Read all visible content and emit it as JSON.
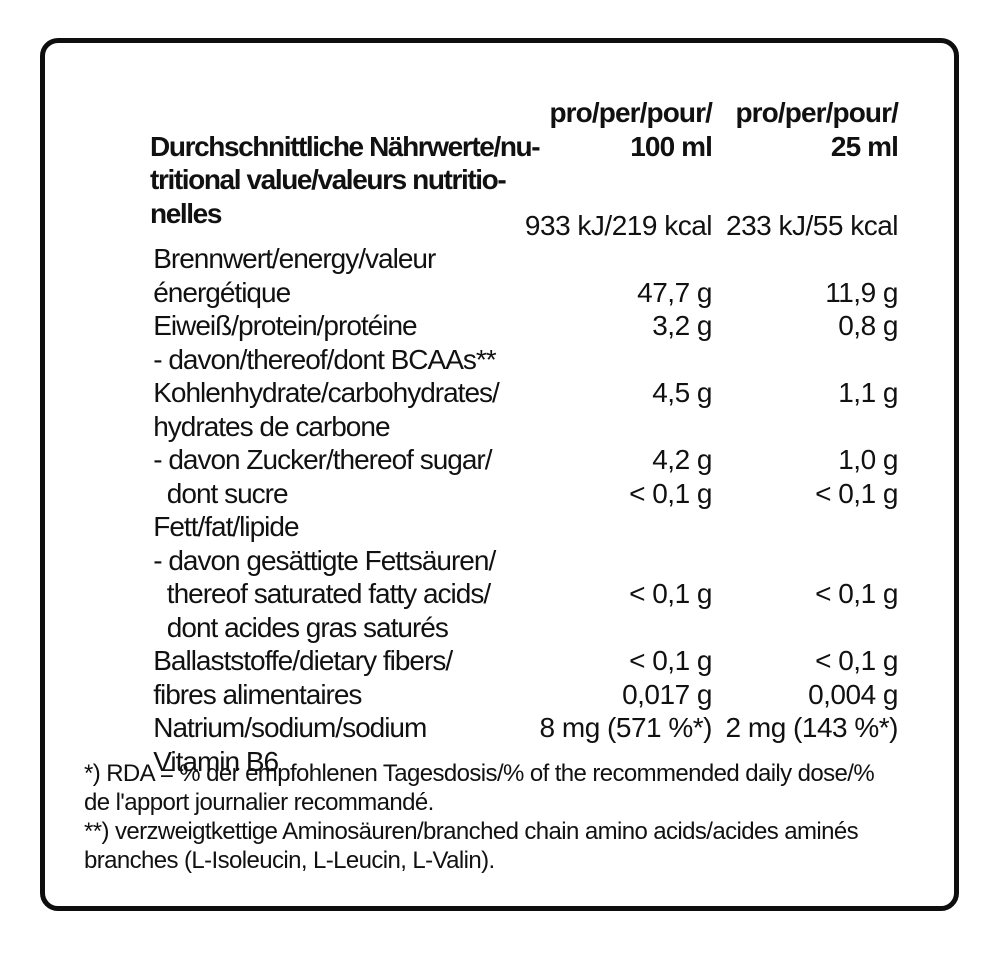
{
  "table": {
    "header_lines": [
      {
        "label": "Durchschnittliche Nährwerte/nu-",
        "c1": "pro/per/pour/",
        "c2": "pro/per/pour/"
      },
      {
        "label": "tritional value/valeurs nutritio-",
        "c1": "100 ml",
        "c2": "25 ml"
      },
      {
        "label": "nelles"
      }
    ],
    "rows": [
      {
        "label": "Brennwert/energy/valeur",
        "c1": "933 kJ/219 kcal",
        "c2": "233 kJ/55 kcal"
      },
      {
        "label": "énergétique"
      },
      {
        "label": "Eiweiß/protein/protéine",
        "c1": "47,7 g",
        "c2": "11,9 g"
      },
      {
        "label": "- davon/thereof/dont BCAAs**",
        "c1": "3,2 g",
        "c2": "0,8 g"
      },
      {
        "label": "Kohlenhydrate/carbohydrates/"
      },
      {
        "label": "hydrates de carbone",
        "c1": "4,5 g",
        "c2": "1,1 g"
      },
      {
        "label": "- davon Zucker/thereof sugar/"
      },
      {
        "label": "  dont sucre",
        "c1": "4,2 g",
        "c2": "1,0 g"
      },
      {
        "label": "Fett/fat/lipide",
        "c1": "< 0,1 g",
        "c2": "< 0,1 g"
      },
      {
        "label": "- davon gesättigte Fettsäuren/"
      },
      {
        "label": "  thereof saturated fatty acids/"
      },
      {
        "label": "  dont acides gras saturés",
        "c1": "< 0,1 g",
        "c2": "< 0,1 g"
      },
      {
        "label": "Ballaststoffe/dietary fibers/"
      },
      {
        "label": "fibres alimentaires",
        "c1": "< 0,1 g",
        "c2": "< 0,1 g"
      },
      {
        "label": "Natrium/sodium/sodium",
        "c1": "0,017 g",
        "c2": "0,004 g"
      },
      {
        "label": "Vitamin B6",
        "c1": "8 mg (571 %*)",
        "c2": "2 mg (143 %*)"
      }
    ]
  },
  "footnotes": [
    {
      "lines": [
        "*) RDA = % der empfohlenen Tagesdosis/% of the recommended daily dose/%",
        "de l'apport journalier recommandé."
      ]
    },
    {
      "lines": [
        "**) verzweigtkettige Aminosäuren/branched chain amino acids/acides aminés",
        "branches (L-Isoleucin, L-Leucin, L-Valin)."
      ]
    }
  ],
  "colors": {
    "text": "#111111",
    "frame_border": "#0e0e0e",
    "background": "#ffffff"
  }
}
